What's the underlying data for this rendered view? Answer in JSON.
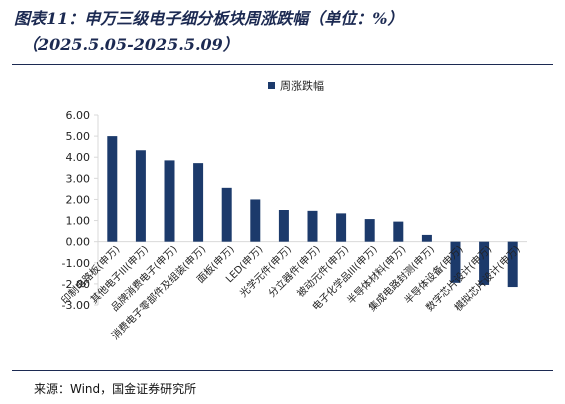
{
  "header": {
    "title_line1": "图表11：申万三级电子细分板块周涨跌幅（单位：%）",
    "title_line2": "（2025.5.05-2025.5.09）"
  },
  "source": "来源：Wind，国金证券研究所",
  "colors": {
    "bar": "#1c3a6b",
    "axis": "#d9d9d9",
    "title": "#1c2a52"
  },
  "chart_data": {
    "type": "bar",
    "legend": {
      "label": "周涨跌幅",
      "position": "top-center"
    },
    "categories": [
      "印制电路板(申万)",
      "其他电子III(申万)",
      "品牌消费电子(申万)",
      "消费电子零部件及组装(申万)",
      "面板(申万)",
      "LED(申万)",
      "光学元件(申万)",
      "分立器件(申万)",
      "被动元件(申万)",
      "电子化学品III(申万)",
      "半导体材料(申万)",
      "集成电路封测(申万)",
      "半导体设备(申万)",
      "数字芯片设计(申万)",
      "模拟芯片设计(申万)"
    ],
    "series": [
      {
        "name": "周涨跌幅",
        "values": [
          5.0,
          4.33,
          3.85,
          3.72,
          2.55,
          2.0,
          1.5,
          1.46,
          1.34,
          1.07,
          0.95,
          0.32,
          -1.95,
          -2.05,
          -2.15
        ]
      }
    ],
    "yticks": [
      "6.00",
      "5.00",
      "4.00",
      "3.00",
      "2.00",
      "1.00",
      "0.00",
      "-1.00",
      "-2.00",
      "-3.00"
    ],
    "ylim": [
      -3,
      6
    ],
    "grid": false
  }
}
